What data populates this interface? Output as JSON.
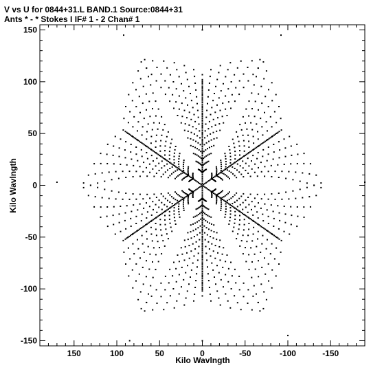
{
  "header": {
    "line1": "V vs U for 0844+31.L BAND.1   Source:0844+31",
    "line2": "Ants * - *     Stokes I  IF# 1 - 2  Chan# 1"
  },
  "chart_data": {
    "type": "scatter",
    "title": "V vs U for 0844+31.L BAND.1   Source:0844+31",
    "subtitle": "Ants * - *     Stokes I  IF# 1 - 2  Chan# 1",
    "xlabel": "Kilo Wavlngth",
    "ylabel": "Kilo Wavlngth",
    "xlim": [
      190,
      -190
    ],
    "ylim": [
      -155,
      155
    ],
    "x_ticks": [
      150,
      100,
      50,
      0,
      -50,
      -100,
      -150
    ],
    "y_ticks": [
      150,
      100,
      50,
      0,
      -50,
      -100,
      -150
    ],
    "x_tick_labels": [
      "150",
      "100",
      "50",
      "0",
      "-50",
      "-100",
      "-150"
    ],
    "y_tick_labels": [
      "150",
      "100",
      "50",
      "0",
      "-50",
      "-100",
      "-150"
    ],
    "grid": false,
    "marker_color": "#000000",
    "pattern": "six-armed VLA-style uv coverage star with radial spokes at 30, 90, 150, 210, 270, 330 degrees",
    "arm_angles_deg": [
      30,
      90,
      150,
      210,
      270,
      330
    ],
    "samples": [
      [
        0,
        150
      ],
      [
        0,
        100
      ],
      [
        0,
        50
      ],
      [
        0,
        -50
      ],
      [
        0,
        -100
      ],
      [
        0,
        -150
      ],
      [
        90,
        52
      ],
      [
        -90,
        52
      ],
      [
        90,
        -52
      ],
      [
        -90,
        -52
      ],
      [
        170,
        3
      ],
      [
        -190,
        3
      ],
      [
        92,
        145
      ],
      [
        -92,
        145
      ],
      [
        85,
        -150
      ],
      [
        -100,
        -145
      ]
    ]
  }
}
